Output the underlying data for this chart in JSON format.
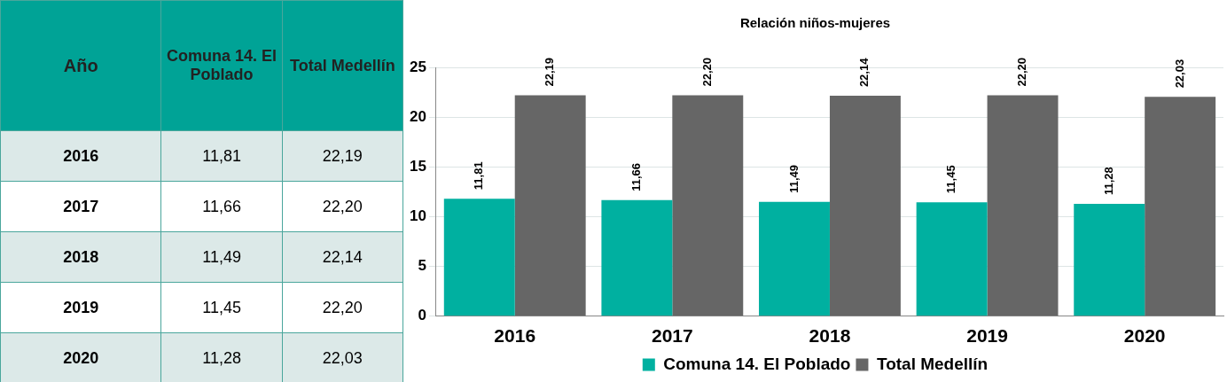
{
  "chart_data": {
    "type": "bar",
    "title": "Relación niños-mujeres",
    "annotations": [
      "Año"
    ],
    "categories": [
      "2016",
      "2017",
      "2018",
      "2019",
      "2020"
    ],
    "series": [
      {
        "name": "Comuna 14. El Poblado",
        "color": "#00b0a0",
        "values": [
          11.81,
          11.66,
          11.49,
          11.45,
          11.28
        ],
        "value_labels": [
          "11,81",
          "11,66",
          "11,49",
          "11,45",
          "11,28"
        ]
      },
      {
        "name": "Total Medellín",
        "color": "#666666",
        "values": [
          22.19,
          22.2,
          22.14,
          22.2,
          22.03
        ],
        "value_labels": [
          "22,19",
          "22,20",
          "22,14",
          "22,20",
          "22,03"
        ]
      }
    ],
    "ylim": [
      0,
      25
    ],
    "yticks": [
      0,
      5,
      10,
      15,
      20,
      25
    ],
    "grid": "y",
    "legend": "bottom"
  }
}
